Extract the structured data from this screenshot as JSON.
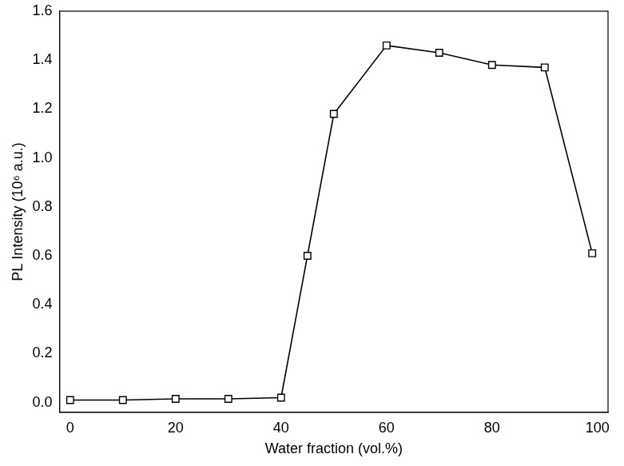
{
  "chart_data": {
    "type": "line",
    "x_label": "Water fraction (vol.%)",
    "y_label": "PL Intensity (10⁶ a.u.)",
    "x": [
      0,
      10,
      20,
      30,
      40,
      45,
      50,
      60,
      70,
      80,
      90,
      99
    ],
    "series": [
      {
        "name": "PL Intensity",
        "color": "#000000",
        "marker": "square",
        "line_style": "solid",
        "values": [
          0.01,
          0.01,
          0.015,
          0.015,
          0.02,
          0.6,
          1.18,
          1.46,
          1.43,
          1.38,
          1.37,
          0.61
        ]
      }
    ],
    "xlim": [
      -2,
      102
    ],
    "xticks": [
      0,
      20,
      40,
      60,
      80,
      100
    ],
    "ylim": [
      -0.04,
      1.6
    ],
    "yticks": [
      {
        "value": 0,
        "label": "0.0"
      },
      0.2,
      0.4,
      0.6,
      0.8,
      {
        "value": 1,
        "label": "1.0"
      },
      1.2,
      1.4,
      1.6
    ],
    "grid": false
  }
}
